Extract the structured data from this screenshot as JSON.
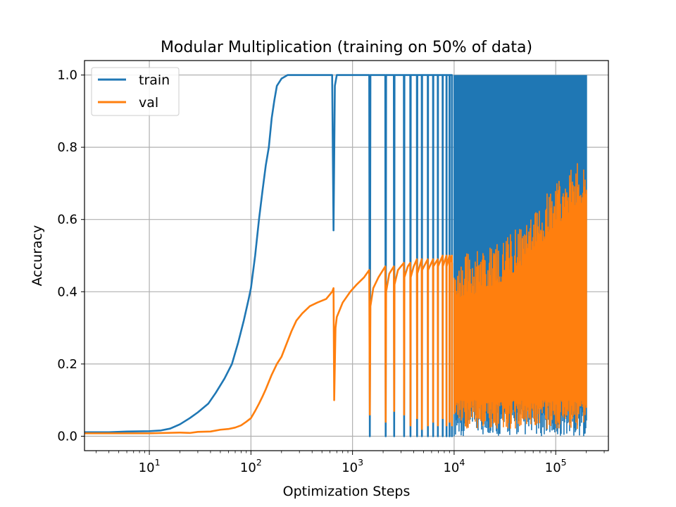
{
  "chart_data": {
    "type": "line",
    "title": "Modular Multiplication (training on 50% of data)",
    "xlabel": "Optimization Steps",
    "ylabel": "Accuracy",
    "xscale": "log",
    "xlim": [
      2.3,
      330000
    ],
    "ylim": [
      -0.04,
      1.04
    ],
    "grid": true,
    "legend_position": "upper-left",
    "xticks": [
      {
        "value": 10,
        "base": "10",
        "exp": "1"
      },
      {
        "value": 100,
        "base": "10",
        "exp": "2"
      },
      {
        "value": 1000,
        "base": "10",
        "exp": "3"
      },
      {
        "value": 10000,
        "base": "10",
        "exp": "4"
      },
      {
        "value": 100000,
        "base": "10",
        "exp": "5"
      }
    ],
    "yticks": [
      {
        "value": 0.0,
        "label": "0.0"
      },
      {
        "value": 0.2,
        "label": "0.2"
      },
      {
        "value": 0.4,
        "label": "0.4"
      },
      {
        "value": 0.6,
        "label": "0.6"
      },
      {
        "value": 0.8,
        "label": "0.8"
      },
      {
        "value": 1.0,
        "label": "1.0"
      }
    ],
    "series": [
      {
        "name": "train",
        "color": "#1f77b4",
        "points": [
          [
            2.3,
            0.011
          ],
          [
            4,
            0.011
          ],
          [
            6,
            0.013
          ],
          [
            10,
            0.014
          ],
          [
            13,
            0.016
          ],
          [
            16,
            0.021
          ],
          [
            20,
            0.033
          ],
          [
            25,
            0.05
          ],
          [
            30,
            0.066
          ],
          [
            38,
            0.09
          ],
          [
            45,
            0.12
          ],
          [
            55,
            0.16
          ],
          [
            65,
            0.2
          ],
          [
            75,
            0.26
          ],
          [
            85,
            0.32
          ],
          [
            95,
            0.38
          ],
          [
            100,
            0.41
          ],
          [
            110,
            0.5
          ],
          [
            120,
            0.6
          ],
          [
            130,
            0.68
          ],
          [
            140,
            0.75
          ],
          [
            150,
            0.8
          ],
          [
            160,
            0.88
          ],
          [
            170,
            0.93
          ],
          [
            180,
            0.97
          ],
          [
            200,
            0.99
          ],
          [
            230,
            1.0
          ],
          [
            630,
            1.0
          ],
          [
            650,
            0.57
          ],
          [
            670,
            0.97
          ],
          [
            700,
            1.0
          ],
          [
            1460,
            1.0
          ],
          [
            1480,
            0.0
          ],
          [
            1500,
            1.0
          ],
          [
            2100,
            1.0
          ],
          [
            2120,
            0.0
          ],
          [
            2140,
            1.0
          ],
          [
            2550,
            1.0
          ],
          [
            2570,
            0.0
          ],
          [
            2590,
            1.0
          ],
          [
            3200,
            1.0
          ],
          [
            3220,
            0.0
          ],
          [
            3240,
            1.0
          ],
          [
            3700,
            1.0
          ],
          [
            3720,
            0.0
          ],
          [
            3740,
            1.0
          ],
          [
            4300,
            1.0
          ],
          [
            4320,
            0.0
          ],
          [
            4340,
            1.0
          ],
          [
            4800,
            1.0
          ],
          [
            4820,
            0.0
          ],
          [
            4840,
            1.0
          ],
          [
            5500,
            1.0
          ],
          [
            5520,
            0.0
          ],
          [
            5540,
            1.0
          ],
          [
            6200,
            1.0
          ],
          [
            6220,
            0.0
          ],
          [
            6240,
            1.0
          ],
          [
            6900,
            1.0
          ],
          [
            6920,
            0.0
          ],
          [
            6940,
            1.0
          ],
          [
            7700,
            1.0
          ],
          [
            7720,
            0.0
          ],
          [
            7740,
            1.0
          ],
          [
            8400,
            1.0
          ],
          [
            8420,
            0.0
          ],
          [
            8440,
            1.0
          ],
          [
            9000,
            1.0
          ],
          [
            9020,
            0.0
          ],
          [
            9040,
            1.0
          ],
          [
            9500,
            1.0
          ],
          [
            9520,
            0.0
          ],
          [
            9540,
            1.0
          ]
        ],
        "band": {
          "from": 10000,
          "to": 200000,
          "upper": 1.0,
          "lower": 0.0
        }
      },
      {
        "name": "val",
        "color": "#ff7f0e",
        "points": [
          [
            2.3,
            0.008
          ],
          [
            10,
            0.008
          ],
          [
            20,
            0.01
          ],
          [
            25,
            0.009
          ],
          [
            30,
            0.012
          ],
          [
            40,
            0.013
          ],
          [
            50,
            0.018
          ],
          [
            60,
            0.02
          ],
          [
            70,
            0.024
          ],
          [
            80,
            0.03
          ],
          [
            90,
            0.04
          ],
          [
            100,
            0.05
          ],
          [
            110,
            0.07
          ],
          [
            120,
            0.09
          ],
          [
            130,
            0.11
          ],
          [
            140,
            0.13
          ],
          [
            160,
            0.17
          ],
          [
            180,
            0.2
          ],
          [
            200,
            0.22
          ],
          [
            220,
            0.25
          ],
          [
            250,
            0.29
          ],
          [
            280,
            0.32
          ],
          [
            320,
            0.34
          ],
          [
            380,
            0.36
          ],
          [
            450,
            0.37
          ],
          [
            550,
            0.38
          ],
          [
            630,
            0.4
          ],
          [
            650,
            0.41
          ],
          [
            660,
            0.1
          ],
          [
            680,
            0.3
          ],
          [
            700,
            0.33
          ],
          [
            800,
            0.37
          ],
          [
            950,
            0.4
          ],
          [
            1100,
            0.42
          ],
          [
            1300,
            0.44
          ],
          [
            1460,
            0.46
          ],
          [
            1480,
            0.06
          ],
          [
            1500,
            0.36
          ],
          [
            1600,
            0.41
          ],
          [
            1800,
            0.44
          ],
          [
            2100,
            0.47
          ],
          [
            2120,
            0.04
          ],
          [
            2140,
            0.4
          ],
          [
            2300,
            0.45
          ],
          [
            2550,
            0.47
          ],
          [
            2570,
            0.07
          ],
          [
            2590,
            0.42
          ],
          [
            2800,
            0.46
          ],
          [
            3200,
            0.48
          ],
          [
            3220,
            0.06
          ],
          [
            3240,
            0.44
          ],
          [
            3500,
            0.47
          ],
          [
            3700,
            0.48
          ],
          [
            3720,
            0.03
          ],
          [
            3740,
            0.44
          ],
          [
            4000,
            0.47
          ],
          [
            4300,
            0.49
          ],
          [
            4320,
            0.05
          ],
          [
            4340,
            0.45
          ],
          [
            4800,
            0.49
          ],
          [
            4820,
            0.02
          ],
          [
            4840,
            0.46
          ],
          [
            5500,
            0.49
          ],
          [
            5520,
            0.03
          ],
          [
            5540,
            0.46
          ],
          [
            6200,
            0.49
          ],
          [
            6220,
            0.04
          ],
          [
            6240,
            0.47
          ],
          [
            6900,
            0.49
          ],
          [
            6920,
            0.03
          ],
          [
            6940,
            0.47
          ],
          [
            7700,
            0.5
          ],
          [
            7720,
            0.05
          ],
          [
            7740,
            0.47
          ],
          [
            8400,
            0.5
          ],
          [
            8420,
            0.03
          ],
          [
            8440,
            0.47
          ],
          [
            9000,
            0.5
          ],
          [
            9020,
            0.04
          ],
          [
            9040,
            0.48
          ],
          [
            9500,
            0.5
          ],
          [
            9520,
            0.03
          ],
          [
            9540,
            0.48
          ]
        ],
        "band": {
          "from": 10000,
          "to": 200000,
          "upper": [
            [
              10000,
              0.5
            ],
            [
              20000,
              0.52
            ],
            [
              30000,
              0.54
            ],
            [
              50000,
              0.6
            ],
            [
              70000,
              0.65
            ],
            [
              100000,
              0.7
            ],
            [
              150000,
              0.75
            ],
            [
              200000,
              0.77
            ]
          ],
          "lower": [
            [
              10000,
              0.02
            ],
            [
              200000,
              0.02
            ]
          ]
        }
      }
    ]
  }
}
